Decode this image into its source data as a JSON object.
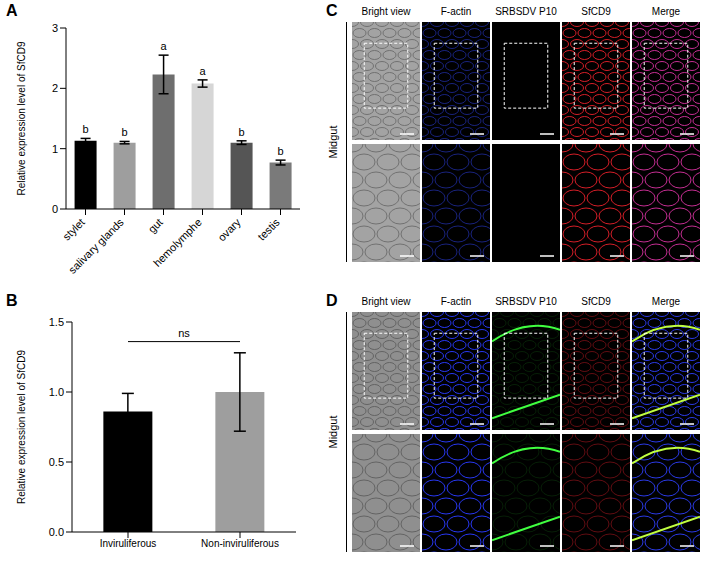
{
  "chart_data": [
    {
      "panel": "A",
      "type": "bar",
      "y_label": "Relative expression level of SfCD9",
      "categories": [
        "stylet",
        "salivary glands",
        "gut",
        "hemolymphe",
        "ovary",
        "testis"
      ],
      "values": [
        1.13,
        1.1,
        2.23,
        2.08,
        1.1,
        0.77
      ],
      "errors": [
        0.04,
        0.02,
        0.32,
        0.06,
        0.03,
        0.04
      ],
      "annotations": [
        "b",
        "b",
        "a",
        "a",
        "b",
        "b"
      ],
      "colors": [
        "#000000",
        "#9e9e9e",
        "#6e6e6e",
        "#d6d6d6",
        "#555555",
        "#7a7a7a"
      ],
      "ylim": [
        0,
        3
      ],
      "yticks": [
        0,
        1,
        2,
        3
      ],
      "grid": false
    },
    {
      "panel": "B",
      "type": "bar",
      "y_label": "Relative expression level of SfCD9",
      "categories": [
        "Inviruliferous",
        "Non-inviruliferous"
      ],
      "values": [
        0.86,
        1.0
      ],
      "errors": [
        0.13,
        0.28
      ],
      "annotation": "ns",
      "colors": [
        "#000000",
        "#9e9e9e"
      ],
      "ylim": [
        0,
        1.5
      ],
      "yticks": [
        {
          "value": 0,
          "label": "0.0"
        },
        {
          "value": 0.5,
          "label": "0.5"
        },
        {
          "value": 1.0,
          "label": "1.0"
        },
        {
          "value": 1.5,
          "label": "1.5"
        }
      ],
      "grid": false
    }
  ],
  "image_panels": [
    {
      "panel": "C",
      "tissue": "Midgut",
      "channels": [
        "Bright view",
        "F-actin",
        "SRBSDV P10",
        "SfCD9",
        "Merge"
      ]
    },
    {
      "panel": "D",
      "tissue": "Midgut",
      "channels": [
        "Bright view",
        "F-actin",
        "SRBSDV P10",
        "SfCD9",
        "Merge"
      ]
    }
  ]
}
